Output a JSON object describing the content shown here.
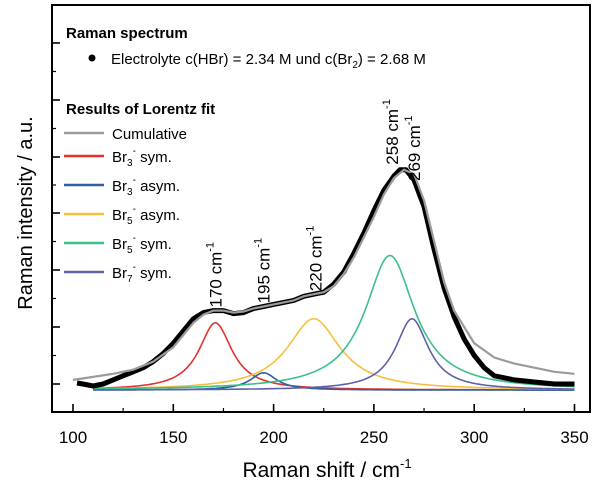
{
  "chart_data": {
    "type": "line",
    "title": "",
    "xlabel": "Raman shift / cm",
    "xlabel_sup": "-1",
    "ylabel": "Raman intensity / a.u.",
    "xlim": [
      90,
      355
    ],
    "ylim": [
      -0.03,
      1.1
    ],
    "x_ticks": [
      100,
      150,
      200,
      250,
      300,
      350
    ],
    "x_tick_labels": [
      "100",
      "150",
      "200",
      "250",
      "300",
      "350"
    ],
    "y_ticks_labeled": false,
    "grid": false,
    "legend_placement": "top-left",
    "colors": {
      "measured": "#000000",
      "cumulative": "#9b9b9b",
      "br3_sym": "#e53030",
      "br3_asym": "#2f5f9e",
      "br5_asym": "#f5c040",
      "br5_sym": "#3cbf8a",
      "br7_sym": "#5d62a8"
    },
    "legend": {
      "section1_title": "Raman spectrum",
      "measured_prefix": "Electrolyte c(HBr) = 2.34 M und c(Br",
      "measured_sub": "2",
      "measured_suffix": ") = 2.68 M",
      "section2_title": "Results of Lorentz fit",
      "cumulative": "Cumulative",
      "entries": [
        {
          "base": "Br",
          "sub": "3",
          "sup": "-",
          "rest": " sym."
        },
        {
          "base": "Br",
          "sub": "3",
          "sup": "-",
          "rest": " asym."
        },
        {
          "base": "Br",
          "sub": "5",
          "sup": "-",
          "rest": " asym."
        },
        {
          "base": "Br",
          "sub": "5",
          "sup": "-",
          "rest": " sym."
        },
        {
          "base": "Br",
          "sub": "7",
          "sup": "-",
          "rest": " sym."
        }
      ]
    },
    "peaks": [
      {
        "name": "Br3- sym.",
        "center": 171,
        "height": 0.33,
        "hwhm": 10,
        "baseline_left": -0.03,
        "baseline_right": -0.03
      },
      {
        "name": "Br3- asym.",
        "center": 195,
        "height": 0.085,
        "hwhm": 8,
        "baseline_left": -0.03,
        "baseline_right": -0.03
      },
      {
        "name": "Br5- asym.",
        "center": 220,
        "height": 0.35,
        "hwhm": 16,
        "baseline_left": -0.03,
        "baseline_right": -0.03
      },
      {
        "name": "Br5- sym.",
        "center": 258,
        "height": 0.66,
        "hwhm": 15,
        "baseline_left": -0.03,
        "baseline_right": -0.03
      },
      {
        "name": "Br7- sym.",
        "center": 269,
        "height": 0.35,
        "hwhm": 10,
        "baseline_left": -0.03,
        "baseline_right": -0.03
      }
    ],
    "cumulative_curve": {
      "x": [
        100,
        110,
        120,
        130,
        140,
        150,
        155,
        160,
        165,
        170,
        175,
        180,
        185,
        190,
        195,
        200,
        205,
        210,
        215,
        220,
        225,
        230,
        235,
        240,
        245,
        250,
        255,
        260,
        265,
        270,
        275,
        280,
        285,
        290,
        300,
        310,
        320,
        330,
        340,
        350
      ],
      "y": [
        0.02,
        0.035,
        0.05,
        0.07,
        0.11,
        0.18,
        0.24,
        0.3,
        0.34,
        0.36,
        0.36,
        0.35,
        0.355,
        0.37,
        0.38,
        0.39,
        0.4,
        0.41,
        0.43,
        0.44,
        0.45,
        0.48,
        0.54,
        0.62,
        0.72,
        0.82,
        0.93,
        1.01,
        1.05,
        1.03,
        0.9,
        0.7,
        0.5,
        0.36,
        0.2,
        0.13,
        0.1,
        0.08,
        0.06,
        0.05
      ]
    },
    "measured_curve": {
      "x": [
        102,
        105,
        110,
        115,
        120,
        125,
        130,
        135,
        140,
        145,
        150,
        155,
        160,
        165,
        170,
        175,
        180,
        185,
        190,
        195,
        200,
        205,
        210,
        215,
        220,
        225,
        230,
        235,
        240,
        245,
        250,
        255,
        260,
        263,
        266,
        270,
        275,
        280,
        285,
        290,
        295,
        300,
        305,
        310,
        320,
        330,
        340,
        350
      ],
      "y": [
        0.005,
        0.0,
        -0.01,
        0.0,
        0.02,
        0.04,
        0.06,
        0.08,
        0.11,
        0.15,
        0.2,
        0.26,
        0.32,
        0.35,
        0.36,
        0.36,
        0.345,
        0.35,
        0.37,
        0.38,
        0.39,
        0.4,
        0.41,
        0.43,
        0.44,
        0.45,
        0.49,
        0.55,
        0.64,
        0.74,
        0.85,
        0.95,
        1.02,
        1.05,
        1.05,
        1.0,
        0.87,
        0.66,
        0.47,
        0.33,
        0.22,
        0.14,
        0.08,
        0.04,
        0.02,
        0.01,
        0.0,
        0.0
      ]
    },
    "annotations": [
      {
        "text": "170 cm",
        "sup": "-1",
        "x": 171,
        "y": 0.375
      },
      {
        "text": "195 cm",
        "sup": "-1",
        "x": 195,
        "y": 0.395
      },
      {
        "text": "220 cm",
        "sup": "-1",
        "x": 221,
        "y": 0.455
      },
      {
        "text": "258 cm",
        "sup": "-1",
        "x": 259,
        "y": 1.075
      },
      {
        "text": "269 cm",
        "sup": "-1",
        "x": 270,
        "y": 0.995
      }
    ]
  }
}
